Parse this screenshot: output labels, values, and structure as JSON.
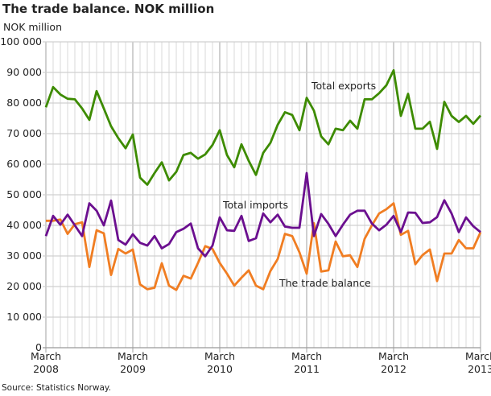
{
  "chart_data": {
    "type": "line",
    "title": "The trade balance. NOK million",
    "ylabel": "NOK million",
    "source": "Source: Statistics Norway.",
    "ylim": [
      0,
      100000
    ],
    "yticks": [
      "0",
      "10 000",
      "20 000",
      "30 000",
      "40 000",
      "50 000",
      "60 000",
      "70 000",
      "80 000",
      "90 000",
      "100 000"
    ],
    "x_start": "March 2008",
    "x_end": "March 2013",
    "frequency": "monthly",
    "xticks": [
      {
        "month": "March",
        "year": "2008",
        "index": 0
      },
      {
        "month": "March",
        "year": "2009",
        "index": 12
      },
      {
        "month": "March",
        "year": "2010",
        "index": 24
      },
      {
        "month": "March",
        "year": "2011",
        "index": 36
      },
      {
        "month": "March",
        "year": "2012",
        "index": 48
      },
      {
        "month": "March",
        "year": "2013",
        "index": 60
      }
    ],
    "grid": true,
    "series": [
      {
        "name": "Total exports",
        "color": "#3d8b00",
        "values": [
          78600,
          85200,
          82800,
          81400,
          81200,
          78200,
          74500,
          83900,
          78200,
          72400,
          68500,
          65200,
          69700,
          55600,
          53300,
          57100,
          60600,
          54700,
          57500,
          63000,
          63700,
          61800,
          63200,
          66300,
          71100,
          63000,
          59000,
          66500,
          61100,
          56500,
          63700,
          67000,
          72900,
          77000,
          76100,
          71100,
          81700,
          77500,
          69100,
          66500,
          71600,
          71100,
          74200,
          71600,
          81200,
          81200,
          83200,
          85800,
          90700,
          75800,
          83000,
          71600,
          71600,
          73900,
          65000,
          80400,
          75800,
          73800,
          75800,
          73200,
          75900
        ]
      },
      {
        "name": "Total imports",
        "color": "#6b0f8f",
        "values": [
          36500,
          43100,
          40200,
          43500,
          40000,
          36500,
          47200,
          44800,
          40000,
          48100,
          35200,
          33700,
          37100,
          34300,
          33400,
          36500,
          32500,
          33900,
          37800,
          38900,
          40600,
          32500,
          29900,
          33400,
          42600,
          38400,
          38200,
          43100,
          34900,
          35800,
          43900,
          41000,
          43500,
          39600,
          39200,
          39200,
          57100,
          36500,
          43700,
          40500,
          36500,
          40200,
          43500,
          44800,
          44800,
          40600,
          38400,
          40200,
          43100,
          37800,
          44200,
          44100,
          40800,
          41000,
          42700,
          48200,
          43900,
          37800,
          42600,
          39700,
          37800
        ]
      },
      {
        "name": "The trade balance",
        "color": "#f07d22",
        "values": [
          41500,
          41500,
          41900,
          37200,
          40400,
          41000,
          26400,
          38400,
          37400,
          23800,
          32300,
          30800,
          32100,
          20700,
          19100,
          19600,
          27600,
          20300,
          18900,
          23500,
          22600,
          27700,
          33200,
          32300,
          27700,
          24200,
          20300,
          22900,
          25300,
          20300,
          19100,
          25100,
          29000,
          37200,
          36500,
          31200,
          24200,
          40700,
          24900,
          25300,
          34700,
          29900,
          30200,
          26400,
          35600,
          40000,
          43900,
          45300,
          47200,
          36900,
          38200,
          27300,
          30300,
          32100,
          21800,
          30800,
          30800,
          35200,
          32500,
          32500,
          37800
        ]
      }
    ]
  }
}
